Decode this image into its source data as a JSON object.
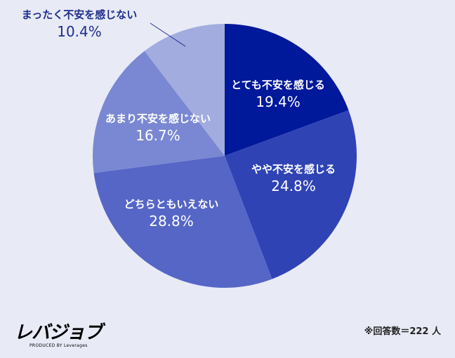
{
  "chart_data": {
    "type": "pie",
    "start_angle": "12 o'clock, clockwise",
    "slices": [
      {
        "label": "とても不安を感じる",
        "value": 19.4,
        "display": "19.4%",
        "color": "#00189a",
        "text_color": "#ffffff"
      },
      {
        "label": "やや不安を感じる",
        "value": 24.8,
        "display": "24.8%",
        "color": "#2f43b5",
        "text_color": "#ffffff"
      },
      {
        "label": "どちらともいえない",
        "value": 28.8,
        "display": "28.8%",
        "color": "#5566c6",
        "text_color": "#ffffff"
      },
      {
        "label": "あまり不安を感じない",
        "value": 16.7,
        "display": "16.7%",
        "color": "#7a88d3",
        "text_color": "#ffffff"
      },
      {
        "label": "まったく不安を感じない",
        "value": 10.4,
        "display": "10.4%",
        "color": "#a2acde",
        "text_color": "#1f2d8f",
        "external_label": true
      }
    ]
  },
  "footer": {
    "note": "※回答数＝222 人"
  },
  "logo": {
    "main": "レバジョブ",
    "sub": "PRODUCED BY Leverages"
  }
}
